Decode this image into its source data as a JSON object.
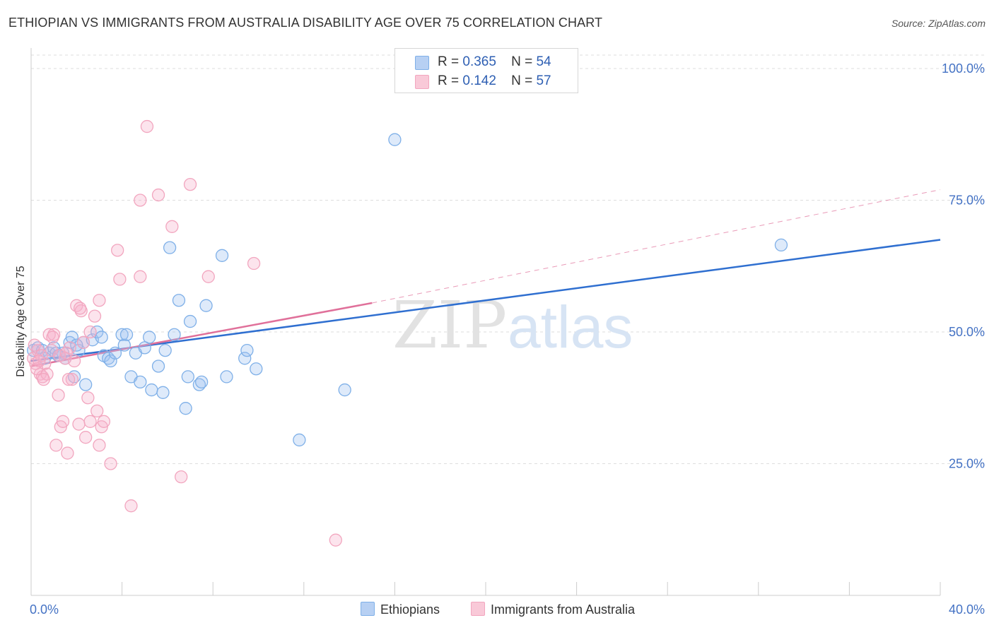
{
  "title": "ETHIOPIAN VS IMMIGRANTS FROM AUSTRALIA DISABILITY AGE OVER 75 CORRELATION CHART",
  "source": "Source: ZipAtlas.com",
  "watermark": {
    "part1": "ZIP",
    "part2": "atlas"
  },
  "legend": {
    "rows": [
      {
        "r_label": "R =",
        "r_value": "0.365",
        "n_label": "N =",
        "n_value": "54"
      },
      {
        "r_label": "R =",
        "r_value": "0.142",
        "n_label": "N =",
        "n_value": "57"
      }
    ]
  },
  "chart_data": {
    "type": "scatter",
    "ylabel": "Disability Age Over 75",
    "xlabel": "",
    "xlim": [
      0,
      40
    ],
    "ylim": [
      0,
      100
    ],
    "x_tick_labels": [
      "0.0%",
      "40.0%"
    ],
    "y_ticks": [
      25,
      50,
      75,
      100
    ],
    "y_tick_labels": [
      "25.0%",
      "50.0%",
      "75.0%",
      "100.0%"
    ],
    "grid": true,
    "legend_position": "top-center",
    "series": [
      {
        "name": "Ethiopians",
        "color": "#7fb0e8",
        "line_color": "#2f6fd0",
        "trend": {
          "x": [
            0,
            40
          ],
          "y": [
            44.5,
            67.5
          ]
        },
        "points": [
          [
            0.1,
            46.5
          ],
          [
            0.3,
            47.0
          ],
          [
            0.5,
            46.5
          ],
          [
            0.8,
            46.0
          ],
          [
            1.0,
            47.0
          ],
          [
            1.2,
            45.5
          ],
          [
            1.4,
            46.0
          ],
          [
            1.5,
            45.0
          ],
          [
            1.7,
            48.0
          ],
          [
            1.8,
            49.0
          ],
          [
            1.9,
            41.5
          ],
          [
            2.1,
            46.5
          ],
          [
            2.3,
            48.0
          ],
          [
            2.4,
            40.0
          ],
          [
            2.7,
            48.5
          ],
          [
            2.9,
            50.0
          ],
          [
            3.1,
            49.0
          ],
          [
            3.2,
            45.5
          ],
          [
            3.4,
            45.0
          ],
          [
            3.5,
            44.5
          ],
          [
            3.7,
            46.0
          ],
          [
            4.0,
            49.5
          ],
          [
            4.1,
            47.5
          ],
          [
            4.2,
            49.5
          ],
          [
            4.4,
            41.5
          ],
          [
            4.6,
            46.0
          ],
          [
            4.8,
            40.5
          ],
          [
            5.0,
            47.0
          ],
          [
            5.2,
            49.0
          ],
          [
            5.3,
            39.0
          ],
          [
            5.6,
            43.5
          ],
          [
            5.8,
            38.5
          ],
          [
            5.9,
            46.5
          ],
          [
            6.1,
            66.0
          ],
          [
            6.3,
            49.5
          ],
          [
            6.5,
            56.0
          ],
          [
            6.8,
            35.5
          ],
          [
            6.9,
            41.5
          ],
          [
            7.0,
            52.0
          ],
          [
            7.4,
            40.0
          ],
          [
            7.5,
            40.5
          ],
          [
            7.7,
            55.0
          ],
          [
            8.4,
            64.5
          ],
          [
            8.6,
            41.5
          ],
          [
            9.4,
            45.0
          ],
          [
            9.5,
            46.5
          ],
          [
            9.9,
            43.0
          ],
          [
            11.8,
            29.5
          ],
          [
            13.8,
            39.0
          ],
          [
            16.0,
            86.5
          ],
          [
            33.0,
            66.5
          ],
          [
            0.6,
            45.0
          ],
          [
            1.1,
            46.0
          ],
          [
            2.0,
            47.5
          ]
        ]
      },
      {
        "name": "Immigrants from Australia",
        "color": "#f2a6bf",
        "line_color": "#e0709a",
        "trend": {
          "x": [
            0,
            15
          ],
          "y": [
            43.5,
            55.5
          ]
        },
        "trend_ext": {
          "x": [
            15,
            40
          ],
          "y": [
            55.5,
            77.0
          ]
        },
        "points": [
          [
            0.1,
            45.0
          ],
          [
            0.2,
            44.0
          ],
          [
            0.3,
            46.5
          ],
          [
            0.4,
            42.0
          ],
          [
            0.5,
            41.5
          ],
          [
            0.6,
            44.0
          ],
          [
            0.7,
            42.0
          ],
          [
            0.8,
            49.5
          ],
          [
            0.9,
            46.5
          ],
          [
            1.0,
            49.5
          ],
          [
            1.1,
            28.5
          ],
          [
            1.2,
            38.0
          ],
          [
            1.3,
            32.0
          ],
          [
            1.4,
            33.0
          ],
          [
            1.5,
            45.0
          ],
          [
            1.6,
            27.0
          ],
          [
            1.7,
            47.0
          ],
          [
            1.8,
            41.0
          ],
          [
            1.9,
            44.5
          ],
          [
            2.0,
            55.0
          ],
          [
            2.1,
            32.5
          ],
          [
            2.2,
            54.0
          ],
          [
            2.3,
            48.0
          ],
          [
            2.4,
            30.0
          ],
          [
            2.5,
            37.5
          ],
          [
            2.6,
            50.0
          ],
          [
            2.6,
            33.0
          ],
          [
            2.8,
            53.0
          ],
          [
            2.9,
            35.0
          ],
          [
            3.0,
            28.5
          ],
          [
            3.1,
            32.0
          ],
          [
            3.2,
            33.0
          ],
          [
            3.0,
            56.0
          ],
          [
            3.5,
            25.0
          ],
          [
            3.8,
            65.5
          ],
          [
            3.9,
            60.0
          ],
          [
            4.4,
            17.0
          ],
          [
            4.8,
            75.0
          ],
          [
            4.8,
            60.5
          ],
          [
            5.1,
            89.0
          ],
          [
            5.6,
            76.0
          ],
          [
            6.2,
            70.0
          ],
          [
            6.6,
            22.5
          ],
          [
            7.0,
            78.0
          ],
          [
            7.8,
            60.5
          ],
          [
            9.8,
            63.0
          ],
          [
            13.4,
            10.5
          ],
          [
            0.15,
            47.5
          ],
          [
            0.25,
            43.0
          ],
          [
            0.45,
            45.5
          ],
          [
            0.55,
            41.0
          ],
          [
            0.35,
            44.5
          ],
          [
            1.25,
            45.5
          ],
          [
            1.55,
            46.0
          ],
          [
            1.65,
            41.0
          ],
          [
            0.95,
            49.0
          ],
          [
            2.15,
            54.5
          ]
        ]
      }
    ]
  }
}
